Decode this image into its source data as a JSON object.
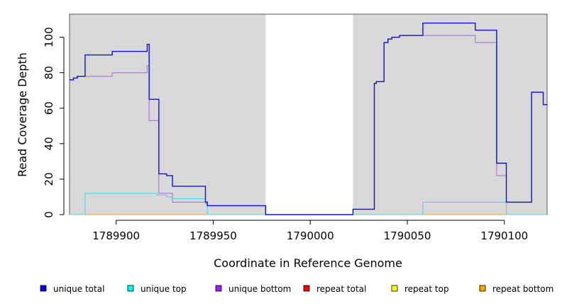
{
  "chart_data": {
    "type": "line",
    "xlabel": "Coordinate in Reference Genome",
    "ylabel": "Read Coverage Depth",
    "xlim": [
      1789876,
      1790122
    ],
    "ylim": [
      0,
      113
    ],
    "xticks": [
      1789900,
      1789950,
      1790000,
      1790050,
      1790100
    ],
    "yticks": [
      0,
      20,
      40,
      60,
      80,
      100
    ],
    "grey_regions": [
      [
        1789876,
        1789977
      ],
      [
        1790022,
        1790122
      ]
    ],
    "series": [
      {
        "name": "unique total",
        "color": "#1010e0",
        "points": [
          [
            1789876,
            76
          ],
          [
            1789878,
            77
          ],
          [
            1789880,
            78
          ],
          [
            1789884,
            90
          ],
          [
            1789898,
            92
          ],
          [
            1789916,
            96
          ],
          [
            1789917,
            65
          ],
          [
            1789922,
            23
          ],
          [
            1789926,
            22
          ],
          [
            1789929,
            16
          ],
          [
            1789946,
            7
          ],
          [
            1789947,
            5
          ],
          [
            1789977,
            0
          ],
          [
            1790022,
            3
          ],
          [
            1790033,
            74
          ],
          [
            1790034,
            75
          ],
          [
            1790038,
            97
          ],
          [
            1790040,
            99
          ],
          [
            1790042,
            100
          ],
          [
            1790046,
            101
          ],
          [
            1790058,
            108
          ],
          [
            1790085,
            104
          ],
          [
            1790096,
            29
          ],
          [
            1790101,
            7
          ],
          [
            1790114,
            69
          ],
          [
            1790120,
            62
          ],
          [
            1790122,
            62
          ]
        ]
      },
      {
        "name": "unique top",
        "color": "#40e0e0",
        "points": [
          [
            1789876,
            0
          ],
          [
            1789884,
            12
          ],
          [
            1789921,
            11
          ],
          [
            1789926,
            10
          ],
          [
            1789929,
            9
          ],
          [
            1789946,
            6
          ],
          [
            1789947,
            0
          ],
          [
            1790058,
            7
          ],
          [
            1790101,
            0
          ],
          [
            1790122,
            0
          ]
        ]
      },
      {
        "name": "unique bottom",
        "color": "#b070e0",
        "points": [
          [
            1789876,
            76
          ],
          [
            1789878,
            77
          ],
          [
            1789880,
            78
          ],
          [
            1789884,
            78
          ],
          [
            1789898,
            80
          ],
          [
            1789916,
            84
          ],
          [
            1789917,
            53
          ],
          [
            1789922,
            12
          ],
          [
            1789929,
            7
          ],
          [
            1789947,
            5
          ],
          [
            1789977,
            0
          ],
          [
            1790022,
            3
          ],
          [
            1790033,
            74
          ],
          [
            1790034,
            75
          ],
          [
            1790038,
            97
          ],
          [
            1790040,
            99
          ],
          [
            1790042,
            100
          ],
          [
            1790046,
            101
          ],
          [
            1790085,
            97
          ],
          [
            1790096,
            22
          ],
          [
            1790101,
            7
          ],
          [
            1790114,
            69
          ],
          [
            1790120,
            62
          ],
          [
            1790122,
            62
          ]
        ]
      },
      {
        "name": "repeat total",
        "color": "#e00000",
        "points": [
          [
            1789876,
            0
          ],
          [
            1790122,
            0
          ]
        ]
      },
      {
        "name": "repeat top",
        "color": "#ffff00",
        "points": [
          [
            1789876,
            0
          ],
          [
            1790122,
            0
          ]
        ]
      },
      {
        "name": "repeat bottom",
        "color": "#ffa500",
        "points": [
          [
            1789876,
            0
          ],
          [
            1790122,
            0
          ]
        ]
      }
    ],
    "legend": {
      "placement": "bottom",
      "entries": [
        {
          "label": "unique total",
          "color": "#0000ff"
        },
        {
          "label": "unique top",
          "color": "#00ffff"
        },
        {
          "label": "unique bottom",
          "color": "#a020f0"
        },
        {
          "label": "repeat total",
          "color": "#ff0000"
        },
        {
          "label": "repeat top",
          "color": "#ffff00"
        },
        {
          "label": "repeat bottom",
          "color": "#ffa500"
        }
      ]
    }
  }
}
